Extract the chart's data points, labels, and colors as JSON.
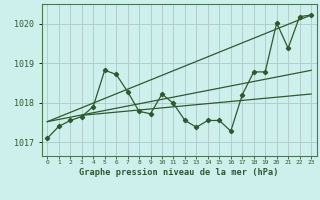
{
  "title": "Graphe pression niveau de la mer (hPa)",
  "bg_color": "#cef0ec",
  "grid_color": "#b0c8c8",
  "line_color": "#2d5a2d",
  "spine_color": "#4a7a4a",
  "xlim": [
    -0.5,
    23.5
  ],
  "ylim": [
    1016.65,
    1020.5
  ],
  "yticks": [
    1017,
    1018,
    1019,
    1020
  ],
  "xticks": [
    0,
    1,
    2,
    3,
    4,
    5,
    6,
    7,
    8,
    9,
    10,
    11,
    12,
    13,
    14,
    15,
    16,
    17,
    18,
    19,
    20,
    21,
    22,
    23
  ],
  "main_data": [
    [
      0,
      1017.1
    ],
    [
      1,
      1017.4
    ],
    [
      2,
      1017.55
    ],
    [
      3,
      1017.65
    ],
    [
      4,
      1017.9
    ],
    [
      5,
      1018.82
    ],
    [
      6,
      1018.72
    ],
    [
      7,
      1018.28
    ],
    [
      8,
      1017.78
    ],
    [
      9,
      1017.72
    ],
    [
      10,
      1018.22
    ],
    [
      11,
      1017.98
    ],
    [
      12,
      1017.55
    ],
    [
      13,
      1017.38
    ],
    [
      14,
      1017.55
    ],
    [
      15,
      1017.55
    ],
    [
      16,
      1017.28
    ],
    [
      17,
      1018.2
    ],
    [
      18,
      1018.78
    ],
    [
      19,
      1018.78
    ],
    [
      20,
      1020.02
    ],
    [
      21,
      1019.38
    ],
    [
      22,
      1020.18
    ],
    [
      23,
      1020.22
    ]
  ],
  "trend_line1": [
    [
      0,
      1017.52
    ],
    [
      23,
      1018.82
    ]
  ],
  "trend_line2": [
    [
      0,
      1017.52
    ],
    [
      23,
      1020.22
    ]
  ],
  "trend_line3": [
    [
      3,
      1017.68
    ],
    [
      23,
      1018.22
    ]
  ]
}
